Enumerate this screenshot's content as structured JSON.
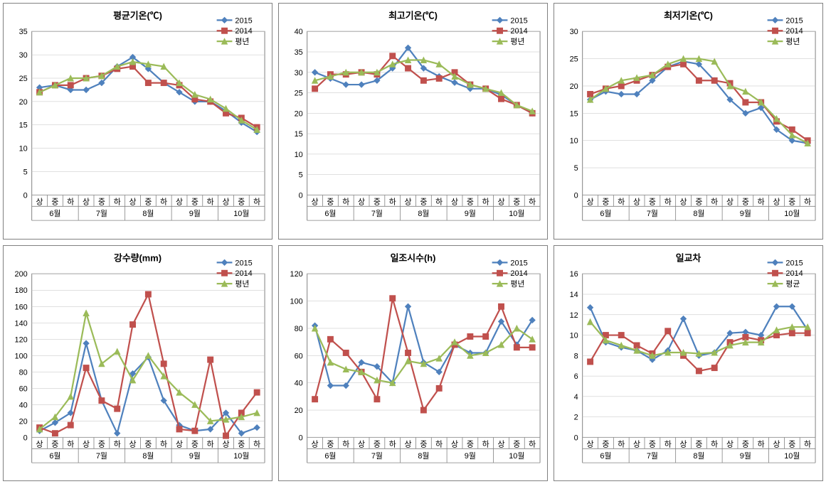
{
  "common": {
    "categories": [
      "상",
      "중",
      "하",
      "상",
      "중",
      "하",
      "상",
      "중",
      "하",
      "상",
      "중",
      "하",
      "상",
      "중",
      "하"
    ],
    "months": [
      "6월",
      "7월",
      "8월",
      "9월",
      "10월"
    ],
    "series_meta": [
      {
        "key": "s2015",
        "label": "2015",
        "color": "#4f81bd",
        "marker": "diamond"
      },
      {
        "key": "s2014",
        "label": "2014",
        "color": "#c0504d",
        "marker": "square"
      },
      {
        "key": "savg",
        "label_avg": "평년",
        "label_avg_alt": "평균",
        "color": "#9bbb59",
        "marker": "triangle"
      }
    ],
    "grid_color": "#bfbfbf",
    "axis_color": "#808080",
    "bg": "#ffffff",
    "title_fontsize": 13,
    "tick_fontsize": 11,
    "legend_fontsize": 11,
    "line_width": 2.25,
    "marker_size": 4
  },
  "charts": [
    {
      "id": "avg-temp",
      "title": "평균기온(℃)",
      "legend_avg": "평년",
      "ylim": [
        0,
        35
      ],
      "ytick_step": 5,
      "data": {
        "s2015": [
          23.0,
          23.5,
          22.5,
          22.5,
          24.0,
          27.5,
          29.5,
          27.0,
          24.0,
          22.0,
          20.0,
          20.0,
          18.0,
          15.5,
          13.5
        ],
        "s2014": [
          22.0,
          23.5,
          23.5,
          25.0,
          25.5,
          27.0,
          27.5,
          24.0,
          24.0,
          23.5,
          20.5,
          20.0,
          17.5,
          16.5,
          14.5
        ],
        "savg": [
          22.0,
          23.5,
          25.0,
          25.0,
          25.5,
          27.5,
          28.5,
          28.0,
          27.5,
          24.0,
          21.5,
          20.5,
          18.5,
          16.0,
          14.0
        ]
      }
    },
    {
      "id": "max-temp",
      "title": "최고기온(℃)",
      "legend_avg": "평년",
      "ylim": [
        0,
        40
      ],
      "ytick_step": 5,
      "data": {
        "s2015": [
          30.0,
          28.5,
          27.0,
          27.0,
          28.0,
          31.0,
          36.0,
          31.0,
          29.0,
          27.5,
          26.0,
          26.0,
          24.5,
          22.0,
          20.0
        ],
        "s2014": [
          26.0,
          29.5,
          29.5,
          30.0,
          29.5,
          34.0,
          31.0,
          28.0,
          28.5,
          30.0,
          27.0,
          26.0,
          23.5,
          22.0,
          20.0
        ],
        "savg": [
          28.0,
          29.0,
          30.0,
          30.0,
          30.0,
          32.0,
          33.0,
          33.0,
          32.0,
          29.0,
          27.0,
          26.0,
          25.0,
          22.0,
          20.5
        ]
      }
    },
    {
      "id": "min-temp",
      "title": "최저기온(℃)",
      "legend_avg": "평년",
      "ylim": [
        0,
        30
      ],
      "ytick_step": 5,
      "data": {
        "s2015": [
          17.5,
          19.0,
          18.5,
          18.5,
          21.0,
          23.5,
          24.5,
          24.0,
          21.0,
          17.5,
          15.0,
          16.0,
          12.0,
          10.0,
          9.5
        ],
        "s2014": [
          18.5,
          19.5,
          20.0,
          21.0,
          22.0,
          23.5,
          24.0,
          21.0,
          21.0,
          20.5,
          17.0,
          17.0,
          13.5,
          12.0,
          10.0
        ],
        "savg": [
          17.5,
          19.5,
          21.0,
          21.5,
          22.0,
          24.0,
          25.0,
          25.0,
          24.5,
          20.0,
          19.0,
          17.0,
          14.0,
          11.0,
          9.5
        ]
      }
    },
    {
      "id": "precip",
      "title": "강수량(mm)",
      "legend_avg": "평년",
      "ylim": [
        0,
        200
      ],
      "ytick_step": 20,
      "data": {
        "s2015": [
          8.0,
          18.0,
          30.0,
          115.0,
          45.0,
          5.0,
          78.0,
          98.0,
          45.0,
          15.0,
          8.0,
          10.0,
          30.0,
          5.0,
          12.0
        ],
        "s2014": [
          12.0,
          5.0,
          15.0,
          85.0,
          45.0,
          35.0,
          138.0,
          175.0,
          90.0,
          10.0,
          8.0,
          95.0,
          2.0,
          30.0,
          55.0
        ],
        "savg": [
          10.0,
          25.0,
          50.0,
          152.0,
          90.0,
          105.0,
          70.0,
          100.0,
          75.0,
          55.0,
          40.0,
          20.0,
          22.0,
          25.0,
          30.0
        ]
      }
    },
    {
      "id": "sunshine",
      "title": "일조시수(h)",
      "legend_avg": "평년",
      "ylim": [
        0,
        120
      ],
      "ytick_step": 20,
      "data": {
        "s2015": [
          82.0,
          38.0,
          38.0,
          55.0,
          52.0,
          40.0,
          96.0,
          55.0,
          48.0,
          68.0,
          62.0,
          62.0,
          85.0,
          68.0,
          86.0
        ],
        "s2014": [
          28.0,
          72.0,
          62.0,
          48.0,
          28.0,
          102.0,
          62.0,
          20.0,
          36.0,
          68.0,
          74.0,
          74.0,
          96.0,
          66.0,
          66.0
        ],
        "savg": [
          80.0,
          55.0,
          50.0,
          48.0,
          42.0,
          40.0,
          56.0,
          54.0,
          58.0,
          70.0,
          60.0,
          62.0,
          68.0,
          80.0,
          72.0
        ]
      }
    },
    {
      "id": "diurnal",
      "title": "일교차",
      "legend_avg": "평균",
      "ylim": [
        0,
        16
      ],
      "ytick_step": 2,
      "data": {
        "s2015": [
          12.7,
          9.3,
          8.8,
          8.5,
          7.6,
          8.5,
          11.6,
          8.0,
          8.3,
          10.2,
          10.3,
          10.0,
          12.8,
          12.8,
          10.5
        ],
        "s2014": [
          7.4,
          10.0,
          10.0,
          9.0,
          8.2,
          10.4,
          8.0,
          6.5,
          6.8,
          9.3,
          9.8,
          9.5,
          10.0,
          10.2,
          10.2
        ],
        "savg": [
          11.3,
          9.5,
          9.0,
          8.5,
          8.0,
          8.3,
          8.3,
          8.2,
          8.3,
          9.0,
          9.3,
          9.3,
          10.5,
          10.8,
          10.8
        ]
      }
    }
  ]
}
